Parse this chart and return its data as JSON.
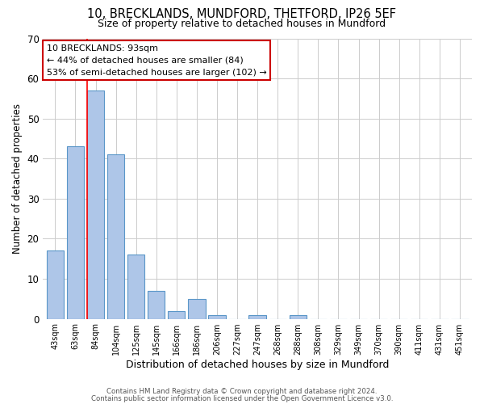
{
  "title": "10, BRECKLANDS, MUNDFORD, THETFORD, IP26 5EF",
  "subtitle": "Size of property relative to detached houses in Mundford",
  "xlabel": "Distribution of detached houses by size in Mundford",
  "ylabel": "Number of detached properties",
  "bar_labels": [
    "43sqm",
    "63sqm",
    "84sqm",
    "104sqm",
    "125sqm",
    "145sqm",
    "166sqm",
    "186sqm",
    "206sqm",
    "227sqm",
    "247sqm",
    "268sqm",
    "288sqm",
    "308sqm",
    "329sqm",
    "349sqm",
    "370sqm",
    "390sqm",
    "411sqm",
    "431sqm",
    "451sqm"
  ],
  "bar_values": [
    17,
    43,
    57,
    41,
    16,
    7,
    2,
    5,
    1,
    0,
    1,
    0,
    1,
    0,
    0,
    0,
    0,
    0,
    0,
    0,
    0
  ],
  "bar_color": "#aec6e8",
  "bar_edge_color": "#5a96c8",
  "ylim": [
    0,
    70
  ],
  "yticks": [
    0,
    10,
    20,
    30,
    40,
    50,
    60,
    70
  ],
  "red_line_bar_index": 2,
  "annotation_title": "10 BRECKLANDS: 93sqm",
  "annotation_line1": "← 44% of detached houses are smaller (84)",
  "annotation_line2": "53% of semi-detached houses are larger (102) →",
  "annotation_box_color": "#ffffff",
  "annotation_box_edge": "#cc0000",
  "footer1": "Contains HM Land Registry data © Crown copyright and database right 2024.",
  "footer2": "Contains public sector information licensed under the Open Government Licence v3.0.",
  "background_color": "#ffffff",
  "grid_color": "#cccccc"
}
